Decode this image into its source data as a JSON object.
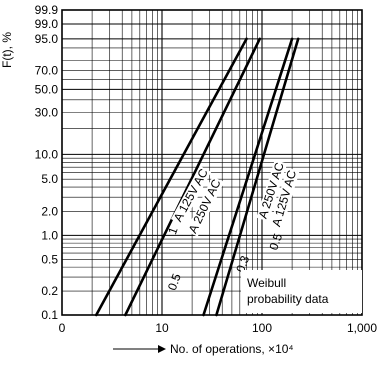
{
  "chart_data": {
    "type": "line",
    "title": "",
    "ylabel": "F(t), %",
    "xlabel": "No. of operations, ×10⁴",
    "x_scale": "log",
    "y_scale": "weibull",
    "xlim": [
      1,
      1000
    ],
    "ylim": [
      0.1,
      99.9
    ],
    "x_ticks": [
      {
        "value": 1,
        "label": "0"
      },
      {
        "value": 10,
        "label": "10"
      },
      {
        "value": 100,
        "label": "100"
      },
      {
        "value": 1000,
        "label": "1,000"
      }
    ],
    "y_ticks": [
      {
        "value": 99.9,
        "label": "99.9"
      },
      {
        "value": 99.0,
        "label": "99.0"
      },
      {
        "value": 95.0,
        "label": "95.0"
      },
      {
        "value": 70.0,
        "label": "70.0"
      },
      {
        "value": 50.0,
        "label": "50.0"
      },
      {
        "value": 30.0,
        "label": "30.0"
      },
      {
        "value": 10.0,
        "label": "10.0"
      },
      {
        "value": 5.0,
        "label": "5.0"
      },
      {
        "value": 2.0,
        "label": "2.0"
      },
      {
        "value": 1.0,
        "label": "1.0"
      },
      {
        "value": 0.5,
        "label": "0.5"
      },
      {
        "value": 0.2,
        "label": "0.2"
      },
      {
        "value": 0.1,
        "label": "0.1"
      }
    ],
    "series": [
      {
        "name": "A 125V AC",
        "points": [
          [
            2.2,
            0.1
          ],
          [
            70,
            95
          ]
        ]
      },
      {
        "name": "A 250V AC",
        "points": [
          [
            4.3,
            0.1
          ],
          [
            95,
            95
          ]
        ]
      },
      {
        "name": "A 250V AC",
        "points": [
          [
            26,
            0.1
          ],
          [
            200,
            95
          ]
        ]
      },
      {
        "name": "A 125V AC",
        "points": [
          [
            35,
            0.1
          ],
          [
            230,
            95
          ]
        ]
      }
    ],
    "annotations": [
      {
        "text": "1",
        "x": 14,
        "y": 1.1
      },
      {
        "text": "0.5",
        "x": 14.5,
        "y": 0.25
      },
      {
        "text": "0.3",
        "x": 70,
        "y": 0.42
      },
      {
        "text": "0.5",
        "x": 150,
        "y": 0.8
      }
    ],
    "legend": {
      "text_lines": [
        "Weibull",
        "probability data"
      ],
      "placement": "bottom-right"
    },
    "grid": true
  }
}
